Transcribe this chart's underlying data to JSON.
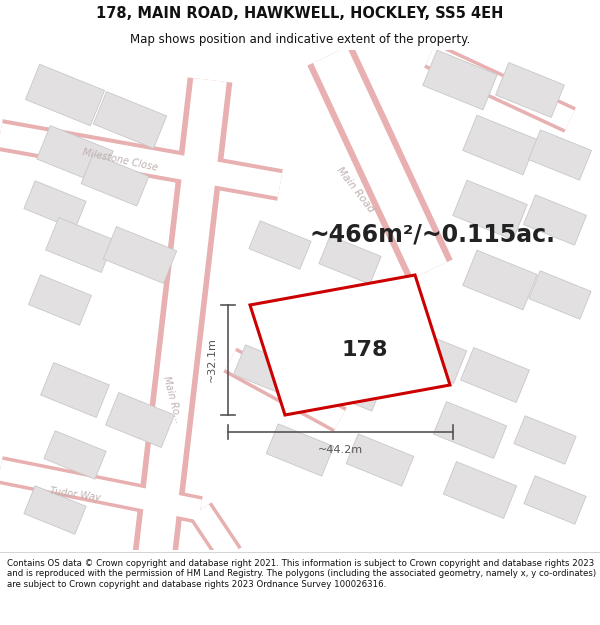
{
  "title": "178, MAIN ROAD, HAWKWELL, HOCKLEY, SS5 4EH",
  "subtitle": "Map shows position and indicative extent of the property.",
  "footer": "Contains OS data © Crown copyright and database right 2021. This information is subject to Crown copyright and database rights 2023 and is reproduced with the permission of HM Land Registry. The polygons (including the associated geometry, namely x, y co-ordinates) are subject to Crown copyright and database rights 2023 Ordnance Survey 100026316.",
  "area_label": "~466m²/~0.115ac.",
  "width_label": "~44.2m",
  "height_label": "~32.1m",
  "property_number": "178",
  "map_bg": "#f7f3f3",
  "road_fill": "#ffffff",
  "road_edge": "#e8b0b0",
  "building_fill": "#e2e0e0",
  "building_edge": "#c8c8c8",
  "property_edge": "#cc0000",
  "property_fill": "#ffffff",
  "dim_color": "#555555",
  "street_color": "#c0b0b0",
  "title_fontsize": 10.5,
  "subtitle_fontsize": 8.5,
  "footer_fontsize": 6.2,
  "area_fontsize": 17,
  "number_fontsize": 16,
  "dim_fontsize": 8
}
